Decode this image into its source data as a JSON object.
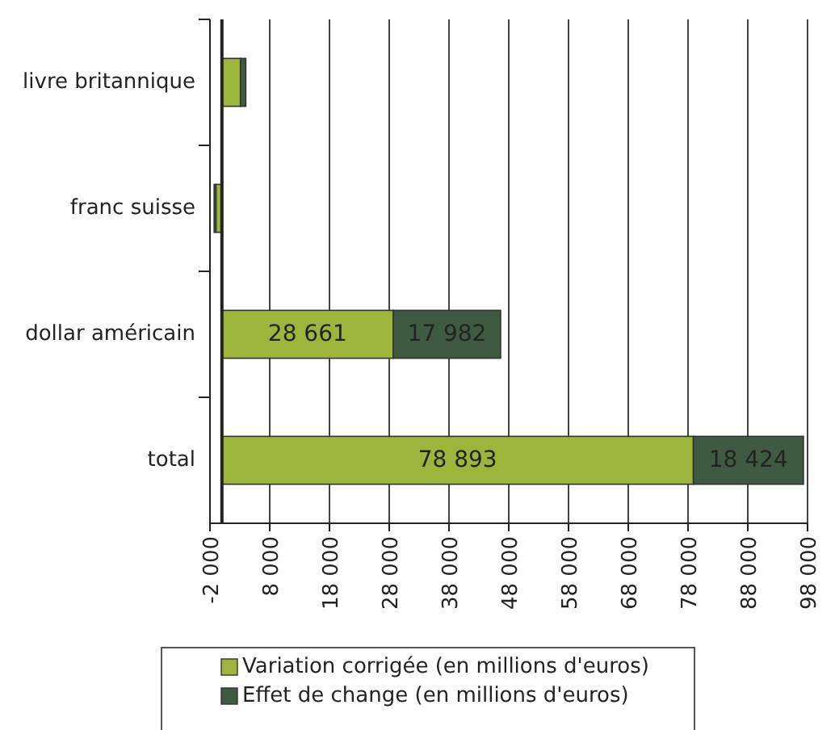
{
  "chart_data": {
    "type": "bar",
    "orientation": "horizontal",
    "stacked": true,
    "categories": [
      "livre britannique",
      "franc suisse",
      "dollar américain",
      "total"
    ],
    "series": [
      {
        "name": "Variation corrigée (en millions d'euros)",
        "color": "#9db53a",
        "values": [
          3100,
          -1000,
          28661,
          78893
        ],
        "value_labels": [
          null,
          null,
          "28 661",
          "78 893"
        ]
      },
      {
        "name": "Effet de change (en millions d'euros)",
        "color": "#3e5a41",
        "values": [
          900,
          -300,
          17982,
          18424
        ],
        "value_labels": [
          null,
          null,
          "17 982",
          "18 424"
        ]
      }
    ],
    "xlim": [
      -2000,
      98000
    ],
    "xticks": [
      {
        "value": -2000,
        "label": "-2 000"
      },
      {
        "value": 8000,
        "label": "8 000"
      },
      {
        "value": 18000,
        "label": "18 000"
      },
      {
        "value": 28000,
        "label": "28 000"
      },
      {
        "value": 38000,
        "label": "38 000"
      },
      {
        "value": 48000,
        "label": "48 000"
      },
      {
        "value": 58000,
        "label": "58 000"
      },
      {
        "value": 68000,
        "label": "68 000"
      },
      {
        "value": 78000,
        "label": "78 000"
      },
      {
        "value": 88000,
        "label": "88 000"
      },
      {
        "value": 98000,
        "label": "98 000"
      }
    ],
    "grid": "x",
    "legend": "bottom"
  }
}
